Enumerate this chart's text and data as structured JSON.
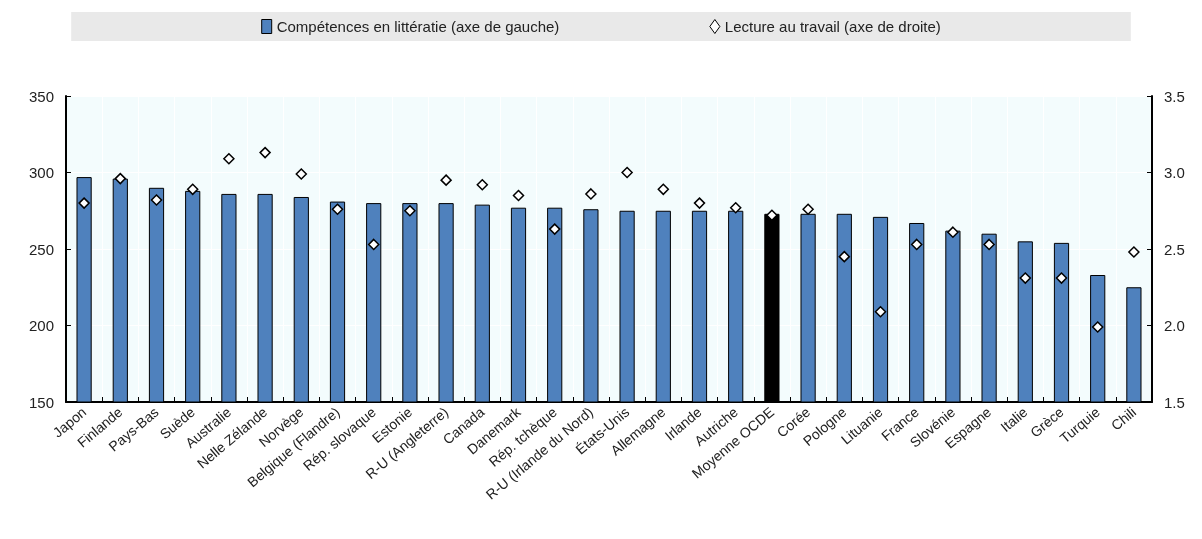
{
  "chart_data": {
    "type": "bar",
    "categories": [
      "Japon",
      "Finlande",
      "Pays-Bas",
      "Suède",
      "Australie",
      "Nelle Zélande",
      "Norvège",
      "Belgique (Flandre)",
      "Rép. slovaque",
      "Estonie",
      "R-U (Angleterre)",
      "Canada",
      "Danemark",
      "Rép. tchèque",
      "R-U (Irlande du Nord)",
      "États-Unis",
      "Allemagne",
      "Irlande",
      "Autriche",
      "Moyenne OCDE",
      "Corée",
      "Pologne",
      "Lituanie",
      "France",
      "Slovénie",
      "Espagne",
      "Italie",
      "Grèce",
      "Turquie",
      "Chili"
    ],
    "series": [
      {
        "name": "Compétences en littératie (axe de gauche)",
        "color": "#4f81bd",
        "colors": [
          "#4f81bd",
          "#4f81bd",
          "#4f81bd",
          "#4f81bd",
          "#4f81bd",
          "#4f81bd",
          "#4f81bd",
          "#4f81bd",
          "#4f81bd",
          "#4f81bd",
          "#4f81bd",
          "#4f81bd",
          "#4f81bd",
          "#4f81bd",
          "#4f81bd",
          "#4f81bd",
          "#4f81bd",
          "#4f81bd",
          "#4f81bd",
          "#000000",
          "#4f81bd",
          "#4f81bd",
          "#4f81bd",
          "#4f81bd",
          "#4f81bd",
          "#4f81bd",
          "#4f81bd",
          "#4f81bd",
          "#4f81bd",
          "#4f81bd"
        ],
        "values": [
          297,
          296,
          290,
          288,
          286,
          286,
          284,
          281,
          280,
          280,
          280,
          279,
          277,
          277,
          276,
          275,
          275,
          275,
          275,
          273,
          273,
          273,
          271,
          267,
          262,
          260,
          255,
          254,
          233,
          225
        ]
      },
      {
        "name": "Lecture au travail (axe de droite)",
        "type": "scatter",
        "axis": "y2",
        "color": "#ffffff",
        "marker": "diamond",
        "values": [
          2.8,
          2.96,
          2.82,
          2.89,
          3.09,
          3.13,
          2.99,
          2.76,
          2.53,
          2.75,
          2.95,
          2.92,
          2.85,
          2.63,
          2.86,
          3.0,
          2.89,
          2.8,
          2.77,
          2.72,
          2.76,
          2.45,
          2.09,
          2.53,
          2.61,
          2.53,
          2.31,
          2.31,
          1.99,
          2.48
        ]
      }
    ],
    "ylim": [
      150,
      350
    ],
    "yticks": [
      150,
      200,
      250,
      300,
      350
    ],
    "y2lim": [
      1.5,
      3.5
    ],
    "y2ticks": [
      {
        "value": 1.5,
        "label": "1.5"
      },
      {
        "value": 2,
        "label": "2.0"
      },
      {
        "value": 2.5,
        "label": "2.5"
      },
      {
        "value": 3,
        "label": "3.0"
      },
      {
        "value": 3.5,
        "label": "3.5"
      }
    ],
    "grid": true,
    "legend": "top"
  }
}
